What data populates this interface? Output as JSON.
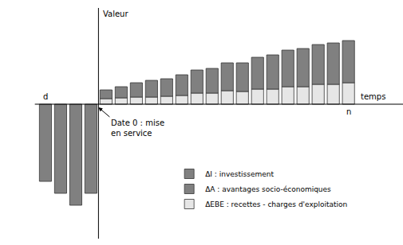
{
  "chart_data": {
    "type": "bar",
    "stacked": true,
    "grid": false,
    "tick_labels": false,
    "legend": "bottom right",
    "x_label": "temps",
    "y_label": "Valeur",
    "categories": [
      "d",
      null,
      null,
      null,
      null,
      null,
      null,
      null,
      null,
      null,
      null,
      null,
      null,
      null,
      null,
      null,
      null,
      null,
      null,
      null,
      "n"
    ],
    "ylim": [
      -169,
      121
    ],
    "annotations": [
      {
        "lines": [
          "Date 0 : mise",
          "en service"
        ]
      }
    ],
    "series": [
      {
        "name": "ΔI : investissement",
        "color": "#808080",
        "values": [
          -97,
          -112,
          -127,
          -112,
          null,
          null,
          null,
          null,
          null,
          null,
          null,
          null,
          null,
          null,
          null,
          null,
          null,
          null,
          null,
          null,
          null
        ]
      },
      {
        "name": "ΔA : avantages socio-économiques",
        "color": "#808080",
        "values": [
          null,
          null,
          null,
          null,
          11,
          14,
          18,
          21,
          22,
          26,
          29,
          31,
          35,
          36,
          40,
          43,
          46,
          48,
          50,
          52,
          53
        ]
      },
      {
        "name": "ΔEBE : recettes - charges d'exploitation",
        "color": "#e6e6e6",
        "values": [
          null,
          null,
          null,
          null,
          7,
          8,
          9,
          9,
          10,
          11,
          14,
          14,
          17,
          16,
          19,
          19,
          22,
          22,
          25,
          25,
          27
        ]
      }
    ]
  }
}
